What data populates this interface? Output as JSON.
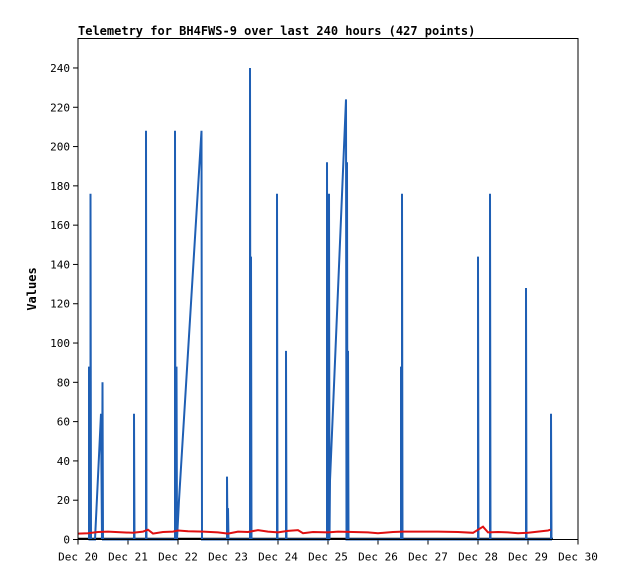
{
  "chart_data": {
    "type": "line",
    "title": "Telemetry for BH4FWS-9 over last 240 hours (427 points)",
    "xlabel": "",
    "ylabel": "Values",
    "x_ticks": [
      "Dec 20",
      "Dec 21",
      "Dec 22",
      "Dec 23",
      "Dec 24",
      "Dec 25",
      "Dec 26",
      "Dec 27",
      "Dec 28",
      "Dec 29",
      "Dec 30"
    ],
    "xlim_days": [
      0,
      10
    ],
    "ylim": [
      0,
      255
    ],
    "y_ticks": [
      0,
      20,
      40,
      60,
      80,
      100,
      120,
      140,
      160,
      180,
      200,
      220,
      240
    ],
    "grid": false,
    "legend": "none",
    "series": [
      {
        "color": "#1f5fb4",
        "points": [
          [
            0.22,
            0
          ],
          [
            0.22,
            88
          ],
          [
            0.23,
            0
          ],
          [
            0.25,
            0
          ],
          [
            0.25,
            176
          ],
          [
            0.26,
            0
          ],
          [
            0.34,
            0
          ],
          [
            0.46,
            64
          ],
          [
            0.48,
            0
          ],
          [
            0.49,
            80
          ],
          [
            0.5,
            0
          ],
          [
            1.12,
            0
          ],
          [
            1.12,
            64
          ],
          [
            1.13,
            0
          ],
          [
            1.36,
            0
          ],
          [
            1.36,
            208
          ],
          [
            1.37,
            0
          ],
          [
            1.94,
            0
          ],
          [
            1.94,
            208
          ],
          [
            1.95,
            0
          ],
          [
            1.97,
            0
          ],
          [
            1.97,
            88
          ],
          [
            1.98,
            0
          ],
          [
            2.02,
            20
          ],
          [
            2.47,
            208
          ],
          [
            2.48,
            0
          ],
          [
            2.98,
            0
          ],
          [
            2.98,
            32
          ],
          [
            2.99,
            0
          ],
          [
            3.0,
            0
          ],
          [
            3.0,
            16
          ],
          [
            3.01,
            0
          ],
          [
            3.44,
            0
          ],
          [
            3.44,
            240
          ],
          [
            3.45,
            0
          ],
          [
            3.46,
            0
          ],
          [
            3.46,
            144
          ],
          [
            3.47,
            0
          ],
          [
            3.98,
            0
          ],
          [
            3.98,
            176
          ],
          [
            3.99,
            0
          ],
          [
            4.16,
            0
          ],
          [
            4.16,
            96
          ],
          [
            4.17,
            0
          ],
          [
            4.98,
            0
          ],
          [
            4.98,
            192
          ],
          [
            4.99,
            0
          ],
          [
            5.02,
            0
          ],
          [
            5.02,
            176
          ],
          [
            5.03,
            0
          ],
          [
            5.04,
            30
          ],
          [
            5.36,
            224
          ],
          [
            5.37,
            0
          ],
          [
            5.38,
            0
          ],
          [
            5.38,
            192
          ],
          [
            5.39,
            0
          ],
          [
            5.4,
            0
          ],
          [
            5.4,
            96
          ],
          [
            5.41,
            0
          ],
          [
            6.46,
            0
          ],
          [
            6.46,
            88
          ],
          [
            6.47,
            0
          ],
          [
            6.48,
            0
          ],
          [
            6.48,
            176
          ],
          [
            6.49,
            0
          ],
          [
            8.0,
            0
          ],
          [
            8.0,
            144
          ],
          [
            8.01,
            0
          ],
          [
            8.24,
            0
          ],
          [
            8.24,
            176
          ],
          [
            8.25,
            0
          ],
          [
            8.96,
            0
          ],
          [
            8.96,
            128
          ],
          [
            8.97,
            0
          ],
          [
            9.46,
            0
          ],
          [
            9.46,
            64
          ],
          [
            9.47,
            0
          ]
        ]
      },
      {
        "color": "#e01010",
        "points": [
          [
            0.0,
            3.0
          ],
          [
            0.2,
            3.2
          ],
          [
            0.4,
            3.8
          ],
          [
            0.6,
            4.0
          ],
          [
            0.9,
            3.6
          ],
          [
            1.1,
            3.4
          ],
          [
            1.3,
            4.0
          ],
          [
            1.4,
            5.0
          ],
          [
            1.5,
            3.0
          ],
          [
            1.7,
            3.8
          ],
          [
            1.9,
            4.0
          ],
          [
            2.0,
            4.6
          ],
          [
            2.2,
            4.2
          ],
          [
            2.5,
            4.0
          ],
          [
            2.8,
            3.6
          ],
          [
            3.0,
            3.0
          ],
          [
            3.2,
            4.0
          ],
          [
            3.4,
            3.8
          ],
          [
            3.6,
            4.8
          ],
          [
            3.8,
            4.0
          ],
          [
            4.0,
            3.6
          ],
          [
            4.2,
            4.4
          ],
          [
            4.4,
            4.8
          ],
          [
            4.5,
            3.2
          ],
          [
            4.7,
            3.8
          ],
          [
            5.0,
            3.6
          ],
          [
            5.2,
            4.0
          ],
          [
            5.5,
            3.8
          ],
          [
            5.8,
            3.6
          ],
          [
            6.0,
            3.2
          ],
          [
            6.3,
            3.8
          ],
          [
            6.5,
            4.0
          ],
          [
            6.8,
            4.0
          ],
          [
            7.2,
            4.0
          ],
          [
            7.6,
            3.8
          ],
          [
            7.9,
            3.4
          ],
          [
            8.1,
            6.5
          ],
          [
            8.2,
            3.6
          ],
          [
            8.4,
            3.8
          ],
          [
            8.6,
            3.6
          ],
          [
            8.8,
            3.2
          ],
          [
            9.0,
            3.4
          ],
          [
            9.2,
            4.0
          ],
          [
            9.4,
            4.6
          ],
          [
            9.45,
            5.0
          ]
        ]
      }
    ]
  }
}
